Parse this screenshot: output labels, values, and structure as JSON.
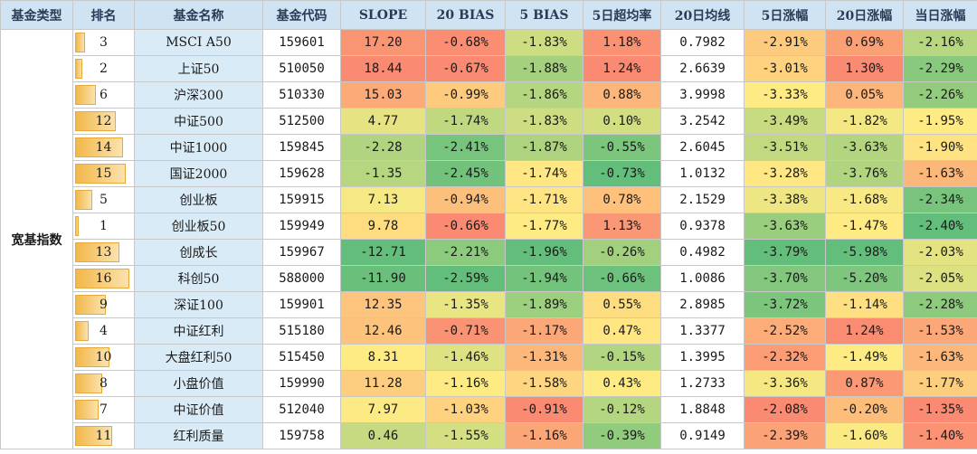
{
  "headers": {
    "category": "基金类型",
    "rank": "排名",
    "name": "基金名称",
    "code": "基金代码",
    "slope": "SLOPE",
    "bias20": "20 BIAS",
    "bias5": "5 BIAS",
    "excess5": "5日超均率",
    "ma20": "20日均线",
    "chg5": "5日涨幅",
    "chg20": "20日涨幅",
    "chgToday": "当日涨幅"
  },
  "category_label": "宽基指数",
  "colors": {
    "header_bg": "#cfe3f3",
    "name_bg": "#d9ebf6",
    "rank_bar": "#f2b84a",
    "scale_low": "#63be7b",
    "scale_mid": "#ffeb84",
    "scale_high": "#f8696b"
  },
  "rank_max": 16,
  "rows": [
    {
      "rank": "3",
      "name": "MSCI A50",
      "code": "159601",
      "slope": "17.20",
      "bias20": "-0.68%",
      "bias5": "-1.83%",
      "excess5": "1.18%",
      "ma20": "0.7982",
      "chg5": "-2.91%",
      "chg20": "0.69%",
      "chgToday": "-2.16%"
    },
    {
      "rank": "2",
      "name": "上证50",
      "code": "510050",
      "slope": "18.44",
      "bias20": "-0.67%",
      "bias5": "-1.88%",
      "excess5": "1.24%",
      "ma20": "2.6639",
      "chg5": "-3.01%",
      "chg20": "1.30%",
      "chgToday": "-2.29%"
    },
    {
      "rank": "6",
      "name": "沪深300",
      "code": "510330",
      "slope": "15.03",
      "bias20": "-0.99%",
      "bias5": "-1.86%",
      "excess5": "0.88%",
      "ma20": "3.9998",
      "chg5": "-3.33%",
      "chg20": "0.05%",
      "chgToday": "-2.26%"
    },
    {
      "rank": "12",
      "name": "中证500",
      "code": "512500",
      "slope": "4.77",
      "bias20": "-1.74%",
      "bias5": "-1.83%",
      "excess5": "0.10%",
      "ma20": "3.2542",
      "chg5": "-3.49%",
      "chg20": "-1.82%",
      "chgToday": "-1.95%"
    },
    {
      "rank": "14",
      "name": "中证1000",
      "code": "159845",
      "slope": "-2.28",
      "bias20": "-2.41%",
      "bias5": "-1.87%",
      "excess5": "-0.55%",
      "ma20": "2.6045",
      "chg5": "-3.51%",
      "chg20": "-3.63%",
      "chgToday": "-1.90%"
    },
    {
      "rank": "15",
      "name": "国证2000",
      "code": "159628",
      "slope": "-1.35",
      "bias20": "-2.45%",
      "bias5": "-1.74%",
      "excess5": "-0.73%",
      "ma20": "1.0132",
      "chg5": "-3.28%",
      "chg20": "-3.76%",
      "chgToday": "-1.63%"
    },
    {
      "rank": "5",
      "name": "创业板",
      "code": "159915",
      "slope": "7.13",
      "bias20": "-0.94%",
      "bias5": "-1.71%",
      "excess5": "0.78%",
      "ma20": "2.1529",
      "chg5": "-3.38%",
      "chg20": "-1.68%",
      "chgToday": "-2.34%"
    },
    {
      "rank": "1",
      "name": "创业板50",
      "code": "159949",
      "slope": "9.78",
      "bias20": "-0.66%",
      "bias5": "-1.77%",
      "excess5": "1.13%",
      "ma20": "0.9378",
      "chg5": "-3.63%",
      "chg20": "-1.47%",
      "chgToday": "-2.40%"
    },
    {
      "rank": "13",
      "name": "创成长",
      "code": "159967",
      "slope": "-12.71",
      "bias20": "-2.21%",
      "bias5": "-1.96%",
      "excess5": "-0.26%",
      "ma20": "0.4982",
      "chg5": "-3.79%",
      "chg20": "-5.98%",
      "chgToday": "-2.03%"
    },
    {
      "rank": "16",
      "name": "科创50",
      "code": "588000",
      "slope": "-11.90",
      "bias20": "-2.59%",
      "bias5": "-1.94%",
      "excess5": "-0.66%",
      "ma20": "1.0086",
      "chg5": "-3.70%",
      "chg20": "-5.20%",
      "chgToday": "-2.05%"
    },
    {
      "rank": "9",
      "name": "深证100",
      "code": "159901",
      "slope": "12.35",
      "bias20": "-1.35%",
      "bias5": "-1.89%",
      "excess5": "0.55%",
      "ma20": "2.8985",
      "chg5": "-3.72%",
      "chg20": "-1.14%",
      "chgToday": "-2.28%"
    },
    {
      "rank": "4",
      "name": "中证红利",
      "code": "515180",
      "slope": "12.46",
      "bias20": "-0.71%",
      "bias5": "-1.17%",
      "excess5": "0.47%",
      "ma20": "1.3377",
      "chg5": "-2.52%",
      "chg20": "1.24%",
      "chgToday": "-1.53%"
    },
    {
      "rank": "10",
      "name": "大盘红利50",
      "code": "515450",
      "slope": "8.31",
      "bias20": "-1.46%",
      "bias5": "-1.31%",
      "excess5": "-0.15%",
      "ma20": "1.3995",
      "chg5": "-2.32%",
      "chg20": "-1.49%",
      "chgToday": "-1.63%"
    },
    {
      "rank": "8",
      "name": "小盘价值",
      "code": "159990",
      "slope": "11.28",
      "bias20": "-1.16%",
      "bias5": "-1.58%",
      "excess5": "0.43%",
      "ma20": "1.2733",
      "chg5": "-3.36%",
      "chg20": "0.87%",
      "chgToday": "-1.77%"
    },
    {
      "rank": "7",
      "name": "中证价值",
      "code": "512040",
      "slope": "7.97",
      "bias20": "-1.03%",
      "bias5": "-0.91%",
      "excess5": "-0.12%",
      "ma20": "1.8848",
      "chg5": "-2.08%",
      "chg20": "-0.20%",
      "chgToday": "-1.35%"
    },
    {
      "rank": "11",
      "name": "红利质量",
      "code": "159758",
      "slope": "0.46",
      "bias20": "-1.55%",
      "bias5": "-1.16%",
      "excess5": "-0.39%",
      "ma20": "0.9149",
      "chg5": "-2.39%",
      "chg20": "-1.60%",
      "chgToday": "-1.40%"
    }
  ]
}
